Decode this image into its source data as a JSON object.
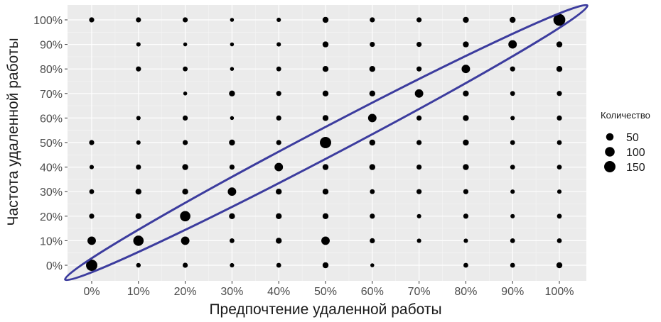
{
  "chart_data": {
    "type": "scatter",
    "xlabel": "Предпочтение удаленной работы",
    "ylabel": "Частота удаленной работы",
    "x_ticks": [
      "0%",
      "10%",
      "20%",
      "30%",
      "40%",
      "50%",
      "60%",
      "70%",
      "80%",
      "90%",
      "100%"
    ],
    "y_ticks": [
      "0%",
      "10%",
      "20%",
      "30%",
      "40%",
      "50%",
      "60%",
      "70%",
      "80%",
      "90%",
      "100%"
    ],
    "xlim": [
      0,
      100
    ],
    "ylim": [
      0,
      100
    ],
    "grid": true,
    "panel_background": "#ebebeb",
    "point_color": "#000000",
    "annotation_ellipse_color": "#3c3c9e",
    "legend": {
      "title": "Количество",
      "placement": "right",
      "entries": [
        {
          "label": "50",
          "value": 50
        },
        {
          "label": "100",
          "value": 100
        },
        {
          "label": "150",
          "value": 150
        }
      ]
    },
    "points": [
      {
        "x": 0,
        "y": 0,
        "n": 150
      },
      {
        "x": 0,
        "y": 10,
        "n": 70
      },
      {
        "x": 0,
        "y": 20,
        "n": 15
      },
      {
        "x": 0,
        "y": 30,
        "n": 12
      },
      {
        "x": 0,
        "y": 40,
        "n": 8
      },
      {
        "x": 0,
        "y": 50,
        "n": 15
      },
      {
        "x": 0,
        "y": 100,
        "n": 15
      },
      {
        "x": 10,
        "y": 0,
        "n": 10
      },
      {
        "x": 10,
        "y": 10,
        "n": 120
      },
      {
        "x": 10,
        "y": 20,
        "n": 25
      },
      {
        "x": 10,
        "y": 30,
        "n": 25
      },
      {
        "x": 10,
        "y": 40,
        "n": 15
      },
      {
        "x": 10,
        "y": 50,
        "n": 8
      },
      {
        "x": 10,
        "y": 60,
        "n": 8
      },
      {
        "x": 10,
        "y": 80,
        "n": 15
      },
      {
        "x": 10,
        "y": 90,
        "n": 8
      },
      {
        "x": 10,
        "y": 100,
        "n": 15
      },
      {
        "x": 20,
        "y": 0,
        "n": 15
      },
      {
        "x": 20,
        "y": 10,
        "n": 70
      },
      {
        "x": 20,
        "y": 20,
        "n": 120
      },
      {
        "x": 20,
        "y": 30,
        "n": 25
      },
      {
        "x": 20,
        "y": 40,
        "n": 25
      },
      {
        "x": 20,
        "y": 50,
        "n": 15
      },
      {
        "x": 20,
        "y": 60,
        "n": 15
      },
      {
        "x": 20,
        "y": 70,
        "n": 5
      },
      {
        "x": 20,
        "y": 80,
        "n": 12
      },
      {
        "x": 20,
        "y": 90,
        "n": 5
      },
      {
        "x": 20,
        "y": 100,
        "n": 15
      },
      {
        "x": 30,
        "y": 0,
        "n": 8
      },
      {
        "x": 30,
        "y": 10,
        "n": 12
      },
      {
        "x": 30,
        "y": 20,
        "n": 25
      },
      {
        "x": 30,
        "y": 30,
        "n": 70
      },
      {
        "x": 30,
        "y": 40,
        "n": 15
      },
      {
        "x": 30,
        "y": 50,
        "n": 25
      },
      {
        "x": 30,
        "y": 60,
        "n": 5
      },
      {
        "x": 30,
        "y": 70,
        "n": 25
      },
      {
        "x": 30,
        "y": 80,
        "n": 5
      },
      {
        "x": 30,
        "y": 90,
        "n": 5
      },
      {
        "x": 30,
        "y": 100,
        "n": 5
      },
      {
        "x": 40,
        "y": 0,
        "n": 12
      },
      {
        "x": 40,
        "y": 10,
        "n": 25
      },
      {
        "x": 40,
        "y": 20,
        "n": 25
      },
      {
        "x": 40,
        "y": 30,
        "n": 25
      },
      {
        "x": 40,
        "y": 40,
        "n": 70
      },
      {
        "x": 40,
        "y": 50,
        "n": 15
      },
      {
        "x": 40,
        "y": 60,
        "n": 15
      },
      {
        "x": 40,
        "y": 70,
        "n": 15
      },
      {
        "x": 40,
        "y": 80,
        "n": 12
      },
      {
        "x": 40,
        "y": 90,
        "n": 8
      },
      {
        "x": 40,
        "y": 100,
        "n": 8
      },
      {
        "x": 50,
        "y": 0,
        "n": 25
      },
      {
        "x": 50,
        "y": 10,
        "n": 70
      },
      {
        "x": 50,
        "y": 20,
        "n": 25
      },
      {
        "x": 50,
        "y": 30,
        "n": 25
      },
      {
        "x": 50,
        "y": 40,
        "n": 25
      },
      {
        "x": 50,
        "y": 50,
        "n": 150
      },
      {
        "x": 50,
        "y": 60,
        "n": 25
      },
      {
        "x": 50,
        "y": 70,
        "n": 25
      },
      {
        "x": 50,
        "y": 80,
        "n": 25
      },
      {
        "x": 50,
        "y": 90,
        "n": 25
      },
      {
        "x": 50,
        "y": 100,
        "n": 25
      },
      {
        "x": 60,
        "y": 0,
        "n": 5
      },
      {
        "x": 60,
        "y": 10,
        "n": 15
      },
      {
        "x": 60,
        "y": 20,
        "n": 15
      },
      {
        "x": 60,
        "y": 30,
        "n": 12
      },
      {
        "x": 60,
        "y": 40,
        "n": 25
      },
      {
        "x": 60,
        "y": 50,
        "n": 25
      },
      {
        "x": 60,
        "y": 60,
        "n": 70
      },
      {
        "x": 60,
        "y": 70,
        "n": 25
      },
      {
        "x": 60,
        "y": 80,
        "n": 25
      },
      {
        "x": 60,
        "y": 90,
        "n": 15
      },
      {
        "x": 60,
        "y": 100,
        "n": 15
      },
      {
        "x": 70,
        "y": 10,
        "n": 8
      },
      {
        "x": 70,
        "y": 20,
        "n": 8
      },
      {
        "x": 70,
        "y": 30,
        "n": 15
      },
      {
        "x": 70,
        "y": 40,
        "n": 15
      },
      {
        "x": 70,
        "y": 50,
        "n": 15
      },
      {
        "x": 70,
        "y": 60,
        "n": 15
      },
      {
        "x": 70,
        "y": 70,
        "n": 70
      },
      {
        "x": 70,
        "y": 80,
        "n": 15
      },
      {
        "x": 70,
        "y": 90,
        "n": 15
      },
      {
        "x": 70,
        "y": 100,
        "n": 15
      },
      {
        "x": 80,
        "y": 0,
        "n": 12
      },
      {
        "x": 80,
        "y": 10,
        "n": 8
      },
      {
        "x": 80,
        "y": 20,
        "n": 15
      },
      {
        "x": 80,
        "y": 30,
        "n": 15
      },
      {
        "x": 80,
        "y": 40,
        "n": 25
      },
      {
        "x": 80,
        "y": 50,
        "n": 25
      },
      {
        "x": 80,
        "y": 60,
        "n": 25
      },
      {
        "x": 80,
        "y": 70,
        "n": 25
      },
      {
        "x": 80,
        "y": 80,
        "n": 70
      },
      {
        "x": 80,
        "y": 90,
        "n": 25
      },
      {
        "x": 80,
        "y": 100,
        "n": 25
      },
      {
        "x": 90,
        "y": 0,
        "n": 12
      },
      {
        "x": 90,
        "y": 10,
        "n": 12
      },
      {
        "x": 90,
        "y": 20,
        "n": 8
      },
      {
        "x": 90,
        "y": 30,
        "n": 8
      },
      {
        "x": 90,
        "y": 40,
        "n": 12
      },
      {
        "x": 90,
        "y": 50,
        "n": 12
      },
      {
        "x": 90,
        "y": 60,
        "n": 8
      },
      {
        "x": 90,
        "y": 70,
        "n": 12
      },
      {
        "x": 90,
        "y": 80,
        "n": 15
      },
      {
        "x": 90,
        "y": 90,
        "n": 70
      },
      {
        "x": 90,
        "y": 100,
        "n": 25
      },
      {
        "x": 100,
        "y": 0,
        "n": 25
      },
      {
        "x": 100,
        "y": 10,
        "n": 12
      },
      {
        "x": 100,
        "y": 20,
        "n": 12
      },
      {
        "x": 100,
        "y": 30,
        "n": 8
      },
      {
        "x": 100,
        "y": 40,
        "n": 12
      },
      {
        "x": 100,
        "y": 50,
        "n": 12
      },
      {
        "x": 100,
        "y": 60,
        "n": 15
      },
      {
        "x": 100,
        "y": 70,
        "n": 15
      },
      {
        "x": 100,
        "y": 80,
        "n": 25
      },
      {
        "x": 100,
        "y": 90,
        "n": 25
      },
      {
        "x": 100,
        "y": 100,
        "n": 170
      }
    ]
  }
}
